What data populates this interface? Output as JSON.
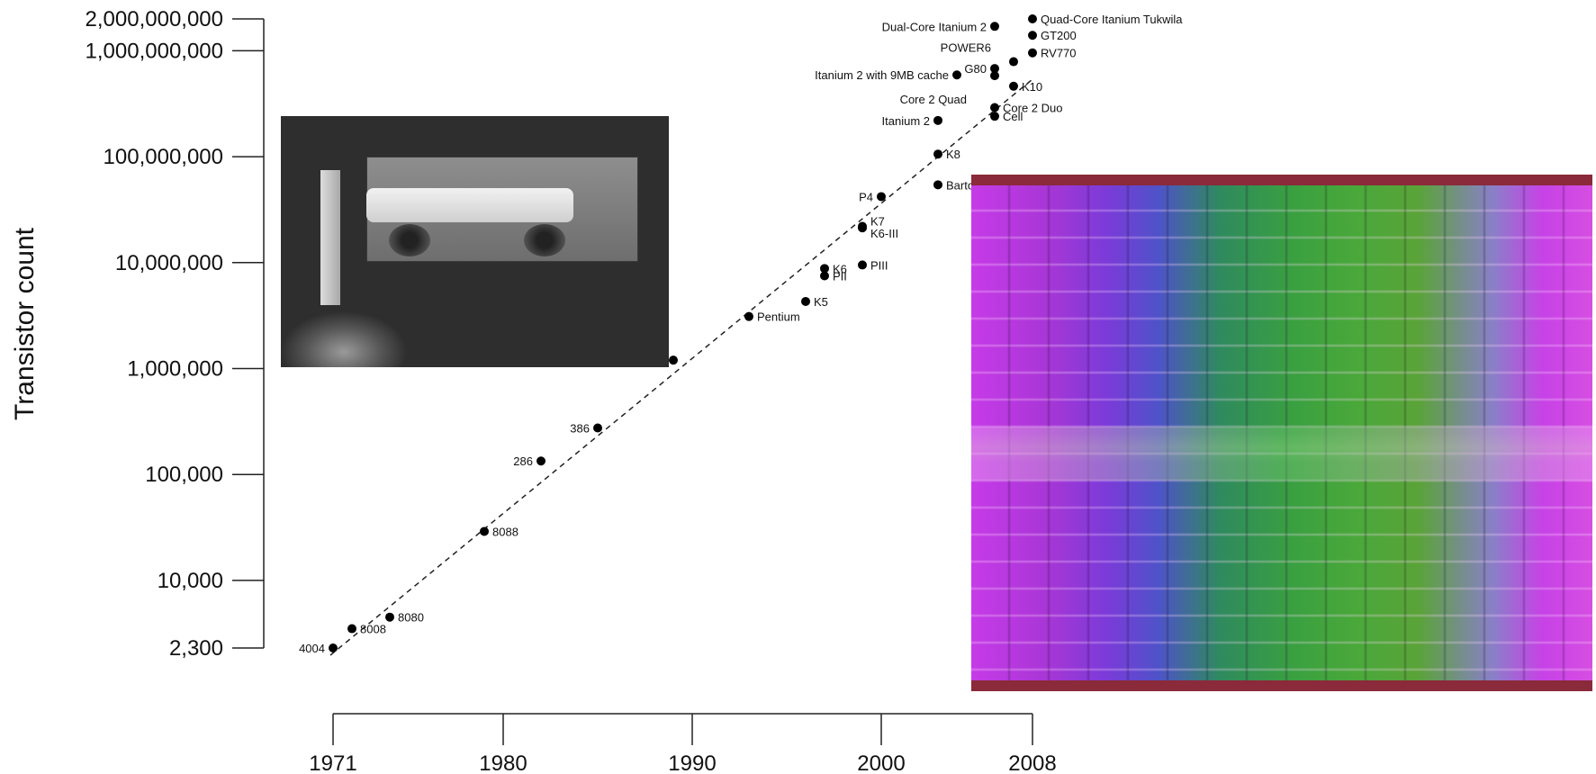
{
  "chart_data": {
    "type": "scatter",
    "title": "",
    "ylabel": "Transistor count",
    "xlabel": "",
    "yscale": "log",
    "ylim": [
      2300,
      2000000000
    ],
    "xlim": [
      1971,
      2008
    ],
    "yticks": [
      {
        "value": 2300,
        "label": "2,300"
      },
      {
        "value": 10000,
        "label": "10,000"
      },
      {
        "value": 100000,
        "label": "100,000"
      },
      {
        "value": 1000000,
        "label": "1,000,000"
      },
      {
        "value": 10000000,
        "label": "10,000,000"
      },
      {
        "value": 100000000,
        "label": "100,000,000"
      },
      {
        "value": 1000000000,
        "label": "1,000,000,000"
      },
      {
        "value": 2000000000,
        "label": "2,000,000,000"
      }
    ],
    "xticks": [
      {
        "value": 1971,
        "label": "1971"
      },
      {
        "value": 1980,
        "label": "1980"
      },
      {
        "value": 1990,
        "label": "1990"
      },
      {
        "value": 2000,
        "label": "2000"
      },
      {
        "value": 2008,
        "label": "2008"
      }
    ],
    "trendline": {
      "style": "dashed",
      "from": {
        "x": 1971,
        "y": 2300
      },
      "to": {
        "x": 2008,
        "y": 1000000000
      }
    },
    "points": [
      {
        "label": "4004",
        "x": 1971,
        "y": 2300,
        "side": "left"
      },
      {
        "label": "8008",
        "x": 1972,
        "y": 3500,
        "side": "right"
      },
      {
        "label": "8080",
        "x": 1974,
        "y": 4500,
        "side": "right"
      },
      {
        "label": "8088",
        "x": 1979,
        "y": 29000,
        "side": "right"
      },
      {
        "label": "286",
        "x": 1982,
        "y": 134000,
        "side": "left"
      },
      {
        "label": "386",
        "x": 1985,
        "y": 275000,
        "side": "left"
      },
      {
        "label": "",
        "x": 1989,
        "y": 1200000,
        "side": "right"
      },
      {
        "label": "Pentium",
        "x": 1993,
        "y": 3100000,
        "side": "right"
      },
      {
        "label": "K5",
        "x": 1996,
        "y": 4300000,
        "side": "right"
      },
      {
        "label": "K6",
        "x": 1997,
        "y": 8800000,
        "side": "right"
      },
      {
        "label": "PII",
        "x": 1997,
        "y": 7500000,
        "side": "right"
      },
      {
        "label": "PIII",
        "x": 1999,
        "y": 9500000,
        "side": "right"
      },
      {
        "label": "K6-III",
        "x": 1999,
        "y": 21300000,
        "side": "right",
        "dy": 6
      },
      {
        "label": "K7",
        "x": 1999,
        "y": 22000000,
        "side": "right",
        "dy": -6
      },
      {
        "label": "P4",
        "x": 2000,
        "y": 42000000,
        "side": "left"
      },
      {
        "label": "Barton",
        "x": 2003,
        "y": 54300000,
        "side": "right"
      },
      {
        "label": "K8",
        "x": 2003,
        "y": 105900000,
        "side": "right"
      },
      {
        "label": "Itanium 2",
        "x": 2003,
        "y": 220000000,
        "side": "left"
      },
      {
        "label": "Cell",
        "x": 2006,
        "y": 241000000,
        "side": "right"
      },
      {
        "label": "Core 2 Duo",
        "x": 2006,
        "y": 291000000,
        "side": "right"
      },
      {
        "label": "Core 2 Quad",
        "x": 2006,
        "y": 582000000,
        "side": "left",
        "dx": -22,
        "dy": 26
      },
      {
        "label": "G80",
        "x": 2006,
        "y": 681000000,
        "side": "left"
      },
      {
        "label": "Itanium 2 with 9MB cache",
        "x": 2004,
        "y": 592000000,
        "side": "left"
      },
      {
        "label": "POWER6",
        "x": 2007,
        "y": 789000000,
        "side": "left",
        "dx": -16,
        "dy": -16
      },
      {
        "label": "K10",
        "x": 2007,
        "y": 463000000,
        "side": "right"
      },
      {
        "label": "Dual-Core Itanium 2",
        "x": 2006,
        "y": 1700000000,
        "side": "left"
      },
      {
        "label": "RV770",
        "x": 2008,
        "y": 956000000,
        "side": "right"
      },
      {
        "label": "GT200",
        "x": 2008,
        "y": 1400000000,
        "side": "right"
      },
      {
        "label": "Quad-Core Itanium Tukwila",
        "x": 2008,
        "y": 2000000000,
        "side": "right"
      }
    ],
    "grid": false,
    "legend": "none"
  },
  "images": {
    "left": "integrated-circuit-photo",
    "right": "processor-die-photo"
  }
}
